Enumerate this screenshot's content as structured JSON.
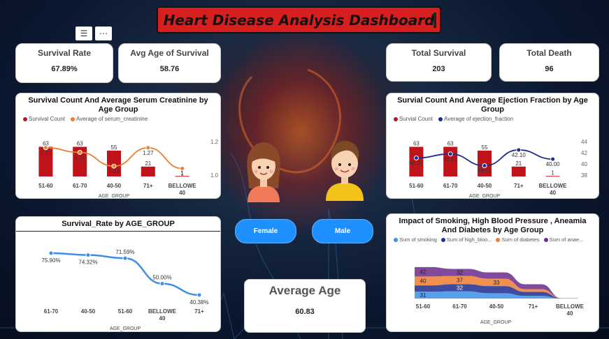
{
  "title": "Heart Disease Analysis Dashboard",
  "toolbar": {
    "filter_icon": "filter-icon",
    "more_icon": "more-icon"
  },
  "kpis": {
    "survival_rate": {
      "label": "Survival Rate",
      "value": "67.89%"
    },
    "avg_age_survival": {
      "label": "Avg Age of Survival",
      "value": "58.76"
    },
    "total_survival": {
      "label": "Total Survival",
      "value": "203"
    },
    "total_death": {
      "label": "Total Death",
      "value": "96"
    }
  },
  "gender_buttons": {
    "female": "Female",
    "male": "Male"
  },
  "average_age": {
    "label": "Average Age",
    "value": "60.83"
  },
  "colors": {
    "bar_red": "#c0141b",
    "line_orange": "#ed7d31",
    "line_navy": "#1f2b8f",
    "line_blue": "#3c8ee8",
    "title_red": "#d61f1f"
  },
  "chart_data": [
    {
      "type": "bar",
      "title": "Survival Count And Average Serum Creatinine by Age Group",
      "xlabel": "AGE_GROUP",
      "categories": [
        "51-60",
        "61-70",
        "40-50",
        "71+",
        "BELLOWE 40"
      ],
      "series": [
        {
          "name": "Survival Count",
          "values": [
            63,
            63,
            55,
            21,
            1
          ],
          "labels": [
            "63",
            "63",
            "55",
            "21",
            "1"
          ]
        },
        {
          "name": "Average of serum_creatinine",
          "type": "line",
          "values": [
            1.27,
            1.21,
            1.03,
            1.27,
            1.0
          ],
          "labels": [
            "1.27",
            "1.21",
            "1.03",
            "1.27",
            "1"
          ]
        }
      ],
      "y2_ticks": [
        "1.2",
        "1.0"
      ]
    },
    {
      "type": "bar",
      "title": "Survial Count And Average Ejection Fraction by Age Group",
      "xlabel": "AGE_GROUP",
      "categories": [
        "51-60",
        "61-70",
        "40-50",
        "71+",
        "BELLOWE 40"
      ],
      "series": [
        {
          "name": "Survial Count",
          "values": [
            63,
            63,
            55,
            21,
            1
          ],
          "labels": [
            "63",
            "63",
            "55",
            "21",
            "1"
          ]
        },
        {
          "name": "Average of ejection_fraction",
          "type": "line",
          "values": [
            40.27,
            41.17,
            38.51,
            42.1,
            40.0
          ],
          "labels": [
            "40.27",
            "41.17",
            "38.51",
            "42.10",
            "40.00"
          ]
        }
      ],
      "y2_ticks": [
        "44",
        "42",
        "40",
        "38"
      ]
    },
    {
      "type": "line",
      "title": "Survival_Rate by AGE_GROUP",
      "xlabel": "AGE_GROUP",
      "categories": [
        "61-70",
        "40-50",
        "51-60",
        "BELLOWE 40",
        "71+"
      ],
      "values": [
        75.9,
        74.32,
        71.59,
        50.0,
        40.38
      ],
      "labels": [
        "75.90%",
        "74.32%",
        "71.59%",
        "50.00%",
        "40.38%"
      ]
    },
    {
      "type": "area",
      "title": "Impact of Smoking, High Blood Pressure , Aneamia And Diabetes by Age Group",
      "xlabel": "AGE_GROUP",
      "categories": [
        "51-60",
        "61-70",
        "40-50",
        "71+",
        "BELLOWE 40"
      ],
      "series": [
        {
          "name": "Sum of smoking",
          "values": [
            31,
            32,
            24,
            12,
            0
          ],
          "labels": [
            "31",
            "",
            "",
            "",
            ""
          ]
        },
        {
          "name": "Sum of high_bloo...",
          "values": [
            28,
            32,
            32,
            18,
            1
          ],
          "labels": [
            "",
            "32",
            "",
            "",
            ""
          ]
        },
        {
          "name": "Sum of diabetes",
          "values": [
            40,
            37,
            33,
            12,
            0
          ],
          "labels": [
            "40",
            "37",
            "33",
            "",
            ""
          ]
        },
        {
          "name": "Sum of anae...",
          "values": [
            42,
            32,
            28,
            22,
            0
          ],
          "labels": [
            "42",
            "32",
            "",
            "",
            ""
          ]
        }
      ]
    }
  ]
}
